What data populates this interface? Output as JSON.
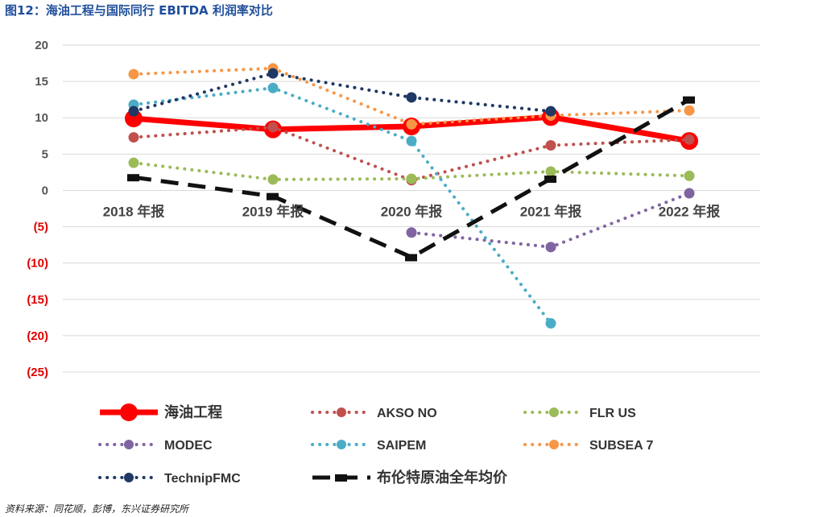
{
  "title": "图12：海油工程与国际同行 EBITDA 利润率对比",
  "source": "资料来源：同花顺，彭博，东兴证券研究所",
  "chart_data": {
    "type": "line",
    "categories": [
      "2018 年报",
      "2019 年报",
      "2020 年报",
      "2021 年报",
      "2022 年报"
    ],
    "y_tick_labels": [
      "20",
      "15",
      "10",
      "5",
      "0",
      "(5)",
      "(10)",
      "(15)",
      "(20)",
      "(25)"
    ],
    "ylim": [
      -25,
      20
    ],
    "grid": true,
    "legend_position": "bottom",
    "colors": {
      "tick_positive": "#555555",
      "tick_negative": "#e00000"
    },
    "series": [
      {
        "name": "海油工程",
        "values": [
          9.9,
          8.4,
          8.8,
          10.1,
          6.8
        ],
        "color": "#ff0000",
        "style": "solid-thick"
      },
      {
        "name": "AKSO NO",
        "values": [
          7.3,
          8.7,
          1.4,
          6.2,
          7.0
        ],
        "color": "#c0504d",
        "style": "dotted"
      },
      {
        "name": "FLR US",
        "values": [
          3.8,
          1.5,
          1.6,
          2.6,
          2.0
        ],
        "color": "#9bbb59",
        "style": "dotted"
      },
      {
        "name": "MODEC",
        "values": [
          null,
          null,
          -5.8,
          -7.8,
          -0.4
        ],
        "color": "#8064a2",
        "style": "dotted"
      },
      {
        "name": "SAIPEM",
        "values": [
          11.8,
          14.1,
          6.8,
          -18.3,
          null
        ],
        "color": "#4bacc6",
        "style": "dotted"
      },
      {
        "name": "SUBSEA 7",
        "values": [
          16.0,
          16.8,
          9.1,
          10.3,
          11.0
        ],
        "color": "#f79646",
        "style": "dotted"
      },
      {
        "name": "TechnipFMC",
        "values": [
          10.9,
          16.1,
          12.8,
          10.9,
          null
        ],
        "color": "#1f3864",
        "style": "dotted"
      },
      {
        "name": "布伦特原油全年均价",
        "values": [
          1.8,
          -0.8,
          -9.2,
          1.6,
          12.5
        ],
        "color": "#111111",
        "style": "dashed"
      }
    ]
  }
}
